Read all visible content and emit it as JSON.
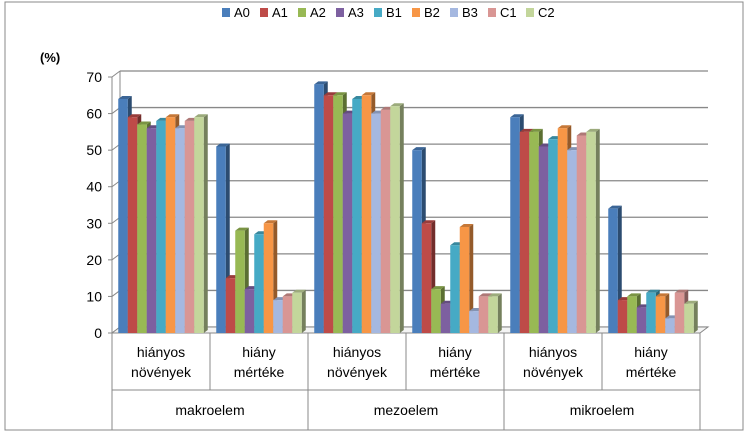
{
  "chart_data": {
    "type": "bar",
    "ylabel": "(%)",
    "ylim": [
      0,
      70
    ],
    "yticks": [
      0,
      10,
      20,
      30,
      40,
      50,
      60,
      70
    ],
    "grid": true,
    "legend_position": "top",
    "groups": [
      {
        "label": "makroelem",
        "categories": [
          "hiányos növények",
          "hiány mértéke"
        ]
      },
      {
        "label": "mezoelem",
        "categories": [
          "hiányos növények",
          "hiány mértéke"
        ]
      },
      {
        "label": "mikroelem",
        "categories": [
          "hiányos növények",
          "hiány mértéke"
        ]
      }
    ],
    "series": [
      {
        "name": "A0",
        "color": "#4a7ebb",
        "values": [
          64,
          51,
          68,
          50,
          59,
          34
        ]
      },
      {
        "name": "A1",
        "color": "#be4b48",
        "values": [
          59,
          15,
          65,
          30,
          55,
          9
        ]
      },
      {
        "name": "A2",
        "color": "#98b954",
        "values": [
          57,
          28,
          65,
          12,
          55,
          10
        ]
      },
      {
        "name": "A3",
        "color": "#7d60a0",
        "values": [
          56,
          12,
          60,
          8,
          51,
          7
        ]
      },
      {
        "name": "B1",
        "color": "#46aac5",
        "values": [
          58,
          27,
          64,
          24,
          53,
          11
        ]
      },
      {
        "name": "B2",
        "color": "#f79646",
        "values": [
          59,
          30,
          65,
          29,
          56,
          10
        ]
      },
      {
        "name": "B3",
        "color": "#a5b8e0",
        "values": [
          56,
          9,
          60,
          6,
          50,
          4
        ]
      },
      {
        "name": "C1",
        "color": "#d99694",
        "values": [
          58,
          10,
          61,
          10,
          54,
          11
        ]
      },
      {
        "name": "C2",
        "color": "#c3d69b",
        "values": [
          59,
          11,
          62,
          10,
          55,
          8
        ]
      }
    ]
  }
}
